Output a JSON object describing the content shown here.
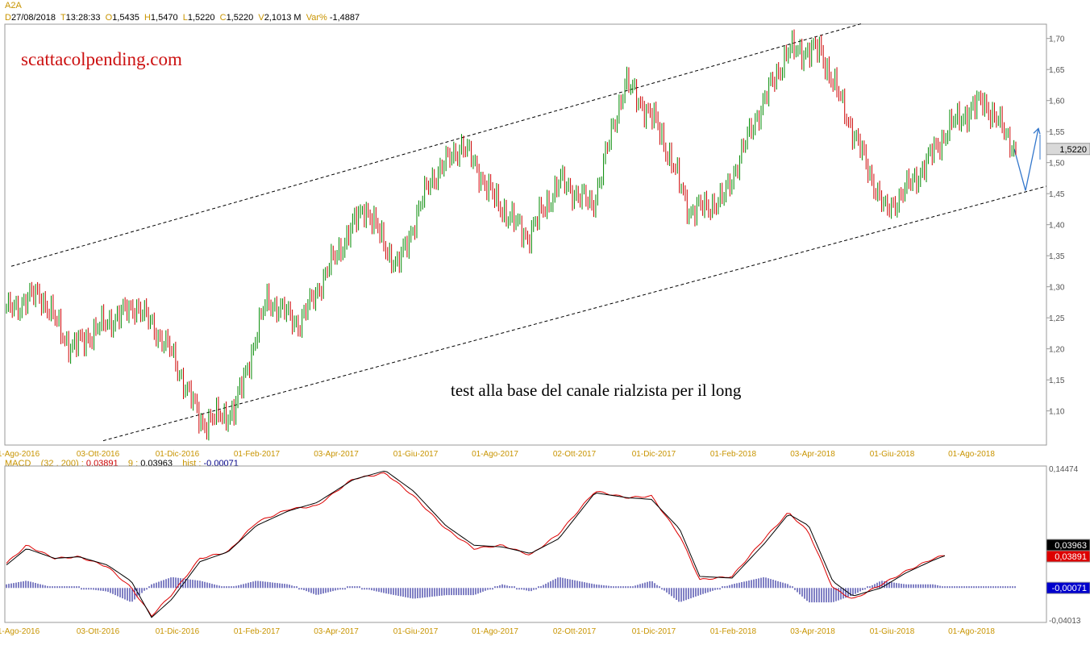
{
  "header": {
    "ticker": "A2A",
    "date_key": "D",
    "date": "27/08/2018",
    "time_key": "T",
    "time": "13:28:33",
    "open_key": "O",
    "open": "1,5435",
    "high_key": "H",
    "high": "1,5470",
    "low_key": "L",
    "low": "1,5220",
    "close_key": "C",
    "close": "1,5220",
    "volume_key": "V",
    "volume": "2,1013 M",
    "var_key": "Var%",
    "var": "-1,4887"
  },
  "watermark": "scattacolpending.com",
  "annotation": "test alla base del canale rialzista per il long",
  "macd_header": {
    "name": "MACD",
    "params": "(32 , 200) :",
    "macd_value": "0,03891",
    "signal_label": "9 :",
    "signal_value": "0,03963",
    "hist_label": "hist :",
    "hist_value": "-0,00071"
  },
  "colors": {
    "up_bar": "#008800",
    "down_bar": "#cc0000",
    "macd_line": "#dd0000",
    "signal_line": "#000000",
    "histogram": "#000088",
    "projection_arrow": "#3377cc",
    "date_axis": "#c89400"
  },
  "chart_data": [
    {
      "type": "ohlc",
      "title": "A2A",
      "x_ticks": [
        "1-Ago-2016",
        "03-Ott-2016",
        "01-Dic-2016",
        "01-Feb-2017",
        "03-Apr-2017",
        "01-Giu-2017",
        "01-Ago-2017",
        "02-Ott-2017",
        "01-Dic-2017",
        "01-Feb-2018",
        "03-Apr-2018",
        "01-Giu-2018",
        "01-Ago-2018"
      ],
      "y_ticks": [
        "1,70",
        "1,65",
        "1,60",
        "1,55",
        "1,50",
        "1,45",
        "1,40",
        "1,35",
        "1,30",
        "1,25",
        "1,20",
        "1,15",
        "1,10"
      ],
      "ylim": [
        1.045,
        1.723
      ],
      "last_price_label": "1,5220",
      "close_waypoints": [
        {
          "x": "1-Ago-2016",
          "y": 1.26
        },
        {
          "x": "mid-Ago-2016",
          "y": 1.29
        },
        {
          "x": "fine-Ago-2016",
          "y": 1.2
        },
        {
          "x": "03-Ott-2016",
          "y": 1.24
        },
        {
          "x": "fine-Ott-2016",
          "y": 1.27
        },
        {
          "x": "metà-Nov-2016",
          "y": 1.2
        },
        {
          "x": "fine-Nov-2016",
          "y": 1.08
        },
        {
          "x": "01-Dic-2016",
          "y": 1.1
        },
        {
          "x": "01-Feb-2017",
          "y": 1.28
        },
        {
          "x": "metà-Feb-2017",
          "y": 1.24
        },
        {
          "x": "03-Apr-2017",
          "y": 1.34
        },
        {
          "x": "metà-Apr-2017",
          "y": 1.43
        },
        {
          "x": "fine-Apr-2017",
          "y": 1.33
        },
        {
          "x": "01-Giu-2017",
          "y": 1.47
        },
        {
          "x": "metà-Giu-2017",
          "y": 1.53
        },
        {
          "x": "01-Ago-2017",
          "y": 1.44
        },
        {
          "x": "fine-Ago-2017",
          "y": 1.38
        },
        {
          "x": "02-Ott-2017",
          "y": 1.47
        },
        {
          "x": "fine-Ott-2017",
          "y": 1.43
        },
        {
          "x": "01-Dic-2017",
          "y": 1.63
        },
        {
          "x": "metà-Dic-2017",
          "y": 1.56
        },
        {
          "x": "01-Feb-2018",
          "y": 1.42
        },
        {
          "x": "metà-Feb-2018",
          "y": 1.44
        },
        {
          "x": "03-Apr-2018",
          "y": 1.57
        },
        {
          "x": "metà-Apr-2018",
          "y": 1.68
        },
        {
          "x": "fine-Apr-2018",
          "y": 1.68
        },
        {
          "x": "metà-Mag-2018",
          "y": 1.55
        },
        {
          "x": "01-Giu-2018",
          "y": 1.42
        },
        {
          "x": "metà-Giu-2018",
          "y": 1.48
        },
        {
          "x": "01-Ago-2018",
          "y": 1.56
        },
        {
          "x": "metà-Ago-2018",
          "y": 1.6
        },
        {
          "x": "27/08/2018",
          "y": 1.522
        }
      ],
      "channel_upper": [
        {
          "x": "1-Ago-2016",
          "y": 1.333
        },
        {
          "x": "27/08/2018",
          "y": 1.78
        }
      ],
      "channel_lower": [
        {
          "x": "01-Nov-2016",
          "y": 1.05
        },
        {
          "x": "27/08/2018",
          "y": 1.46
        }
      ],
      "projection": [
        {
          "x": "27/08/2018",
          "y": 1.522
        },
        {
          "y": 1.455
        },
        {
          "y": 1.555
        }
      ]
    },
    {
      "type": "line",
      "title": "MACD",
      "x_ticks": [
        "1-Ago-2016",
        "03-Ott-2016",
        "01-Dic-2016",
        "01-Feb-2017",
        "03-Apr-2017",
        "01-Giu-2017",
        "01-Ago-2017",
        "02-Ott-2017",
        "01-Dic-2017",
        "01-Feb-2018",
        "03-Apr-2018",
        "01-Giu-2018",
        "01-Ago-2018"
      ],
      "ylim": [
        -0.04013,
        0.14474
      ],
      "y_tick_labels": [
        "0,14474",
        "-0,04013"
      ],
      "value_labels": {
        "signal": "0,03963",
        "macd": "0,03891",
        "hist": "-0,00071"
      },
      "series": [
        {
          "name": "MACD",
          "color": "#dd0000",
          "waypoints": [
            [
              0,
              0.03
            ],
            [
              25,
              0.052
            ],
            [
              60,
              0.036
            ],
            [
              90,
              0.038
            ],
            [
              125,
              0.026
            ],
            [
              155,
              0.0
            ],
            [
              180,
              -0.034
            ],
            [
              205,
              -0.008
            ],
            [
              240,
              0.036
            ],
            [
              275,
              0.044
            ],
            [
              310,
              0.08
            ],
            [
              350,
              0.096
            ],
            [
              385,
              0.1
            ],
            [
              430,
              0.133
            ],
            [
              470,
              0.14
            ],
            [
              505,
              0.112
            ],
            [
              545,
              0.072
            ],
            [
              580,
              0.048
            ],
            [
              615,
              0.052
            ],
            [
              650,
              0.04
            ],
            [
              685,
              0.066
            ],
            [
              730,
              0.118
            ],
            [
              770,
              0.11
            ],
            [
              800,
              0.112
            ],
            [
              835,
              0.064
            ],
            [
              860,
              0.01
            ],
            [
              900,
              0.014
            ],
            [
              940,
              0.06
            ],
            [
              970,
              0.092
            ],
            [
              995,
              0.068
            ],
            [
              1025,
              0.0
            ],
            [
              1050,
              -0.014
            ],
            [
              1085,
              0.004
            ],
            [
              1115,
              0.02
            ],
            [
              1150,
              0.036
            ],
            [
              1165,
              0.04
            ]
          ]
        },
        {
          "name": "Signal",
          "color": "#000000",
          "waypoints": [
            [
              0,
              0.028
            ],
            [
              25,
              0.048
            ],
            [
              60,
              0.036
            ],
            [
              90,
              0.038
            ],
            [
              125,
              0.028
            ],
            [
              155,
              0.008
            ],
            [
              180,
              -0.036
            ],
            [
              205,
              -0.014
            ],
            [
              240,
              0.032
            ],
            [
              275,
              0.044
            ],
            [
              310,
              0.076
            ],
            [
              350,
              0.094
            ],
            [
              385,
              0.104
            ],
            [
              430,
              0.132
            ],
            [
              470,
              0.143
            ],
            [
              505,
              0.118
            ],
            [
              545,
              0.076
            ],
            [
              580,
              0.052
            ],
            [
              615,
              0.05
            ],
            [
              650,
              0.042
            ],
            [
              685,
              0.06
            ],
            [
              730,
              0.116
            ],
            [
              770,
              0.11
            ],
            [
              800,
              0.108
            ],
            [
              835,
              0.072
            ],
            [
              860,
              0.014
            ],
            [
              900,
              0.012
            ],
            [
              940,
              0.054
            ],
            [
              970,
              0.09
            ],
            [
              995,
              0.076
            ],
            [
              1025,
              0.008
            ],
            [
              1050,
              -0.01
            ],
            [
              1085,
              0.0
            ],
            [
              1115,
              0.018
            ],
            [
              1150,
              0.034
            ],
            [
              1165,
              0.0396
            ]
          ]
        }
      ]
    }
  ]
}
